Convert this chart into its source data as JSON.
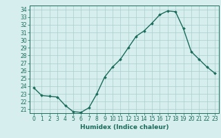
{
  "x": [
    0,
    1,
    2,
    3,
    4,
    5,
    6,
    7,
    8,
    9,
    10,
    11,
    12,
    13,
    14,
    15,
    16,
    17,
    18,
    19,
    20,
    21,
    22,
    23
  ],
  "y": [
    23.8,
    22.8,
    22.7,
    22.6,
    21.5,
    20.7,
    20.6,
    21.2,
    23.0,
    25.2,
    26.5,
    27.5,
    29.0,
    30.5,
    31.2,
    32.2,
    33.3,
    33.8,
    33.7,
    31.5,
    28.5,
    27.5,
    26.5,
    25.7
  ],
  "line_color": "#1a6b5a",
  "marker": "D",
  "marker_size": 2,
  "bg_color": "#d6eeee",
  "grid_color": "#aacccc",
  "xlabel": "Humidex (Indice chaleur)",
  "xlim": [
    -0.5,
    23.5
  ],
  "ylim": [
    20.5,
    34.5
  ],
  "yticks": [
    21,
    22,
    23,
    24,
    25,
    26,
    27,
    28,
    29,
    30,
    31,
    32,
    33,
    34
  ],
  "xticks": [
    0,
    1,
    2,
    3,
    4,
    5,
    6,
    7,
    8,
    9,
    10,
    11,
    12,
    13,
    14,
    15,
    16,
    17,
    18,
    19,
    20,
    21,
    22,
    23
  ],
  "tick_fontsize": 5.5,
  "xlabel_fontsize": 6.5,
  "line_width": 1.0
}
